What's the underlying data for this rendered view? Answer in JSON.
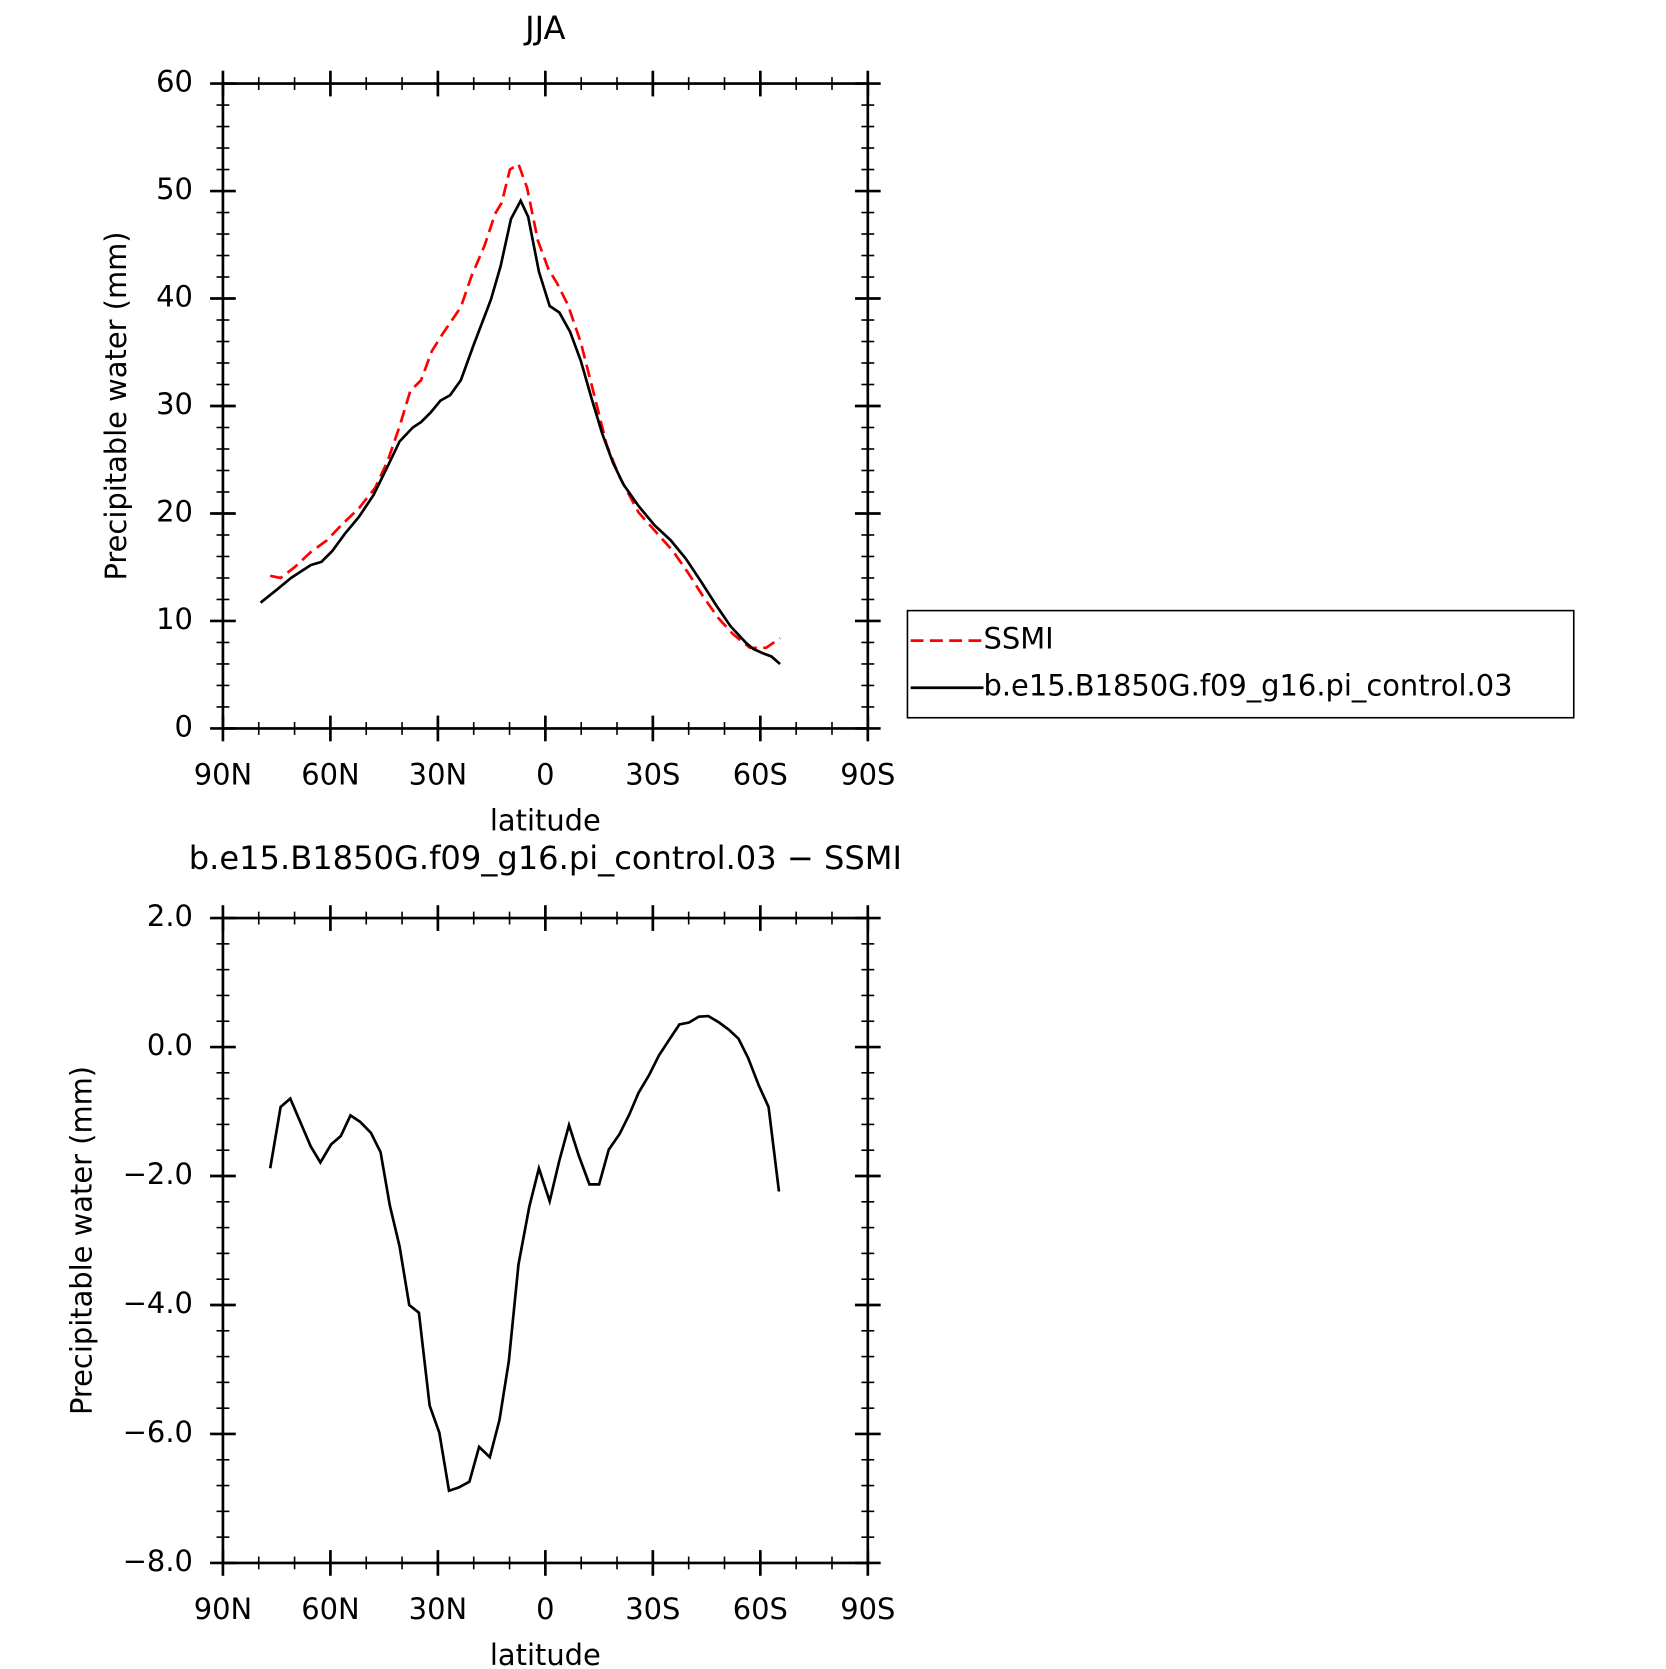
{
  "chart_data": [
    {
      "type": "line",
      "title": "JJA",
      "xlabel": "latitude",
      "ylabel": "Precipitable water (mm)",
      "xlim": [
        90,
        -90
      ],
      "xticks": [
        {
          "value": 90,
          "label": "90N"
        },
        {
          "value": 60,
          "label": "60N"
        },
        {
          "value": 30,
          "label": "30N"
        },
        0,
        {
          "value": -30,
          "label": "30S"
        },
        {
          "value": -60,
          "label": "60S"
        },
        {
          "value": -90,
          "label": "90S"
        }
      ],
      "ylim": [
        0,
        60
      ],
      "yticks": [
        0,
        10,
        20,
        30,
        40,
        50,
        60
      ],
      "legend": "right",
      "series": [
        {
          "name": "SSMI",
          "color": "#ff0000",
          "linestyle": "dashed",
          "x": [
            76.8,
            73.9,
            70,
            65.5,
            61,
            57,
            52,
            47.5,
            44,
            40.7,
            37.7,
            34.7,
            31.7,
            28.7,
            23.6,
            20.6,
            17,
            14,
            12.2,
            9.9,
            7.5,
            5.1,
            2.1,
            -0.9,
            -3.3,
            -6.3,
            -9.9,
            -14.1,
            -17.1,
            -20.7,
            -26,
            -30.8,
            -35.6,
            -39.8,
            -44,
            -48.2,
            -52.3,
            -57.1,
            -61.6,
            -65.5
          ],
          "values": [
            14.2,
            14.0,
            15.0,
            16.4,
            17.5,
            18.9,
            20.5,
            22.4,
            24.9,
            28.1,
            31.4,
            32.4,
            35.1,
            36.7,
            39.2,
            42.1,
            44.9,
            47.9,
            48.9,
            52.0,
            52.5,
            50.3,
            45.4,
            42.7,
            41.4,
            39.4,
            35.9,
            30.4,
            26.4,
            23.4,
            20.1,
            18.3,
            16.5,
            14.5,
            12.3,
            10.3,
            8.8,
            7.5,
            7.5,
            8.4
          ]
        },
        {
          "name": "b.e15.B1850G.f09_g16.pi_control.03",
          "color": "#000000",
          "linestyle": "solid",
          "x": [
            79.5,
            75,
            71,
            65.5,
            62.5,
            59.5,
            56,
            52,
            48,
            44,
            40.7,
            37,
            34.7,
            32,
            29.3,
            26.6,
            23.6,
            20,
            15.2,
            12.5,
            9.6,
            6.9,
            4.8,
            1.8,
            -1.2,
            -3.9,
            -6.9,
            -9.9,
            -12.9,
            -15.9,
            -18.9,
            -21.8,
            -26,
            -30.5,
            -35,
            -39.2,
            -43.4,
            -47.6,
            -51.7,
            -55.9,
            -58,
            -60.7,
            -63.1,
            -65.5
          ],
          "values": [
            11.7,
            12.9,
            14.0,
            15.2,
            15.5,
            16.5,
            18.1,
            19.7,
            21.7,
            24.4,
            26.7,
            28.0,
            28.5,
            29.4,
            30.5,
            31.0,
            32.4,
            35.7,
            39.9,
            43.0,
            47.4,
            49.1,
            47.6,
            42.5,
            39.3,
            38.7,
            36.9,
            34.2,
            30.7,
            27.4,
            24.7,
            22.7,
            20.7,
            18.9,
            17.5,
            15.8,
            13.7,
            11.5,
            9.5,
            8.0,
            7.4,
            7.0,
            6.7,
            6.0
          ]
        }
      ]
    },
    {
      "type": "line",
      "title": "b.e15.B1850G.f09_g16.pi_control.03 − SSMI",
      "xlabel": "latitude",
      "ylabel": "Precipitable water (mm)",
      "xlim": [
        90,
        -90
      ],
      "xticks": [
        {
          "value": 90,
          "label": "90N"
        },
        {
          "value": 60,
          "label": "60N"
        },
        {
          "value": 30,
          "label": "30N"
        },
        0,
        {
          "value": -30,
          "label": "30S"
        },
        {
          "value": -60,
          "label": "60S"
        },
        {
          "value": -90,
          "label": "90S"
        }
      ],
      "ylim": [
        -8,
        2
      ],
      "yticks": [
        {
          "value": -8,
          "label": "−8.0"
        },
        {
          "value": -6,
          "label": "−6.0"
        },
        {
          "value": -4,
          "label": "−4.0"
        },
        {
          "value": -2,
          "label": "−2.0"
        },
        {
          "value": 0,
          "label": "0.0"
        },
        {
          "value": 2,
          "label": "2.0"
        }
      ],
      "series": [
        {
          "color": "#000000",
          "linestyle": "solid",
          "x": [
            76.8,
            73.9,
            71.2,
            65.5,
            62.8,
            59.8,
            57.1,
            54.4,
            51.7,
            48.7,
            46,
            43.4,
            40.7,
            38,
            35.3,
            32.3,
            29.6,
            26.9,
            24.2,
            21.2,
            18.5,
            15.5,
            12.8,
            10.2,
            7.5,
            4.5,
            1.8,
            -1.2,
            -3.9,
            -6.6,
            -9.3,
            -12.3,
            -15,
            -17.7,
            -20.7,
            -23.4,
            -26,
            -29,
            -31.7,
            -34.4,
            -37.4,
            -40.1,
            -42.8,
            -45.5,
            -48.5,
            -51.2,
            -53.9,
            -56.6,
            -59.6,
            -62.3,
            -65.2
          ],
          "values": [
            -1.88,
            -0.93,
            -0.8,
            -1.54,
            -1.79,
            -1.51,
            -1.38,
            -1.06,
            -1.16,
            -1.33,
            -1.63,
            -2.46,
            -3.09,
            -4.0,
            -4.12,
            -5.56,
            -5.98,
            -6.88,
            -6.83,
            -6.74,
            -6.2,
            -6.36,
            -5.78,
            -4.87,
            -3.37,
            -2.48,
            -1.88,
            -2.39,
            -1.76,
            -1.21,
            -1.68,
            -2.13,
            -2.13,
            -1.59,
            -1.35,
            -1.05,
            -0.71,
            -0.43,
            -0.13,
            0.1,
            0.35,
            0.38,
            0.47,
            0.48,
            0.38,
            0.27,
            0.13,
            -0.17,
            -0.6,
            -0.93,
            -2.24
          ]
        }
      ]
    }
  ]
}
